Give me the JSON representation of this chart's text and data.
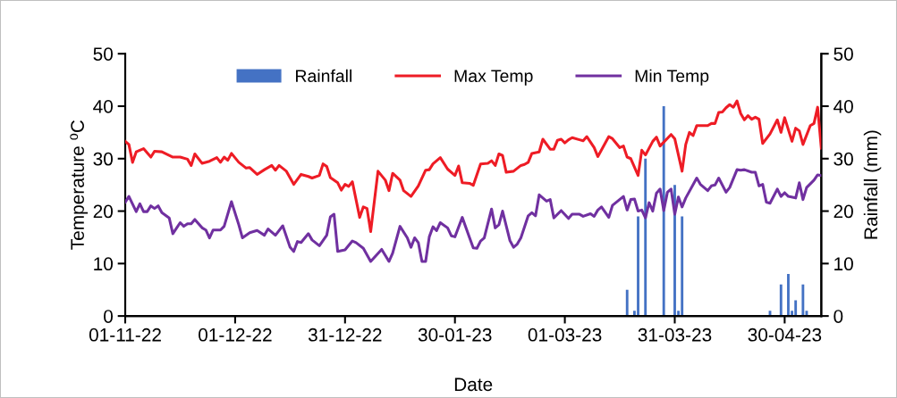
{
  "chart_data": {
    "type": "line",
    "xlabel": "Date",
    "ylabel": "Temperature ⁰C",
    "y2label": "Rainfall (mm)",
    "xlim": [
      "2022-11-01",
      "2023-05-10"
    ],
    "xticks": [
      {
        "value": "2022-11-01",
        "label": "01-11-22"
      },
      {
        "value": "2022-12-01",
        "label": "01-12-22"
      },
      {
        "value": "2022-12-31",
        "label": "31-12-22"
      },
      {
        "value": "2023-01-30",
        "label": "30-01-23"
      },
      {
        "value": "2023-03-01",
        "label": "01-03-23"
      },
      {
        "value": "2023-03-31",
        "label": "31-03-23"
      },
      {
        "value": "2023-04-30",
        "label": "30-04-23"
      }
    ],
    "ylim": [
      0,
      50
    ],
    "yticks": [
      0,
      10,
      20,
      30,
      40,
      50
    ],
    "y2lim": [
      0,
      50
    ],
    "y2ticks": [
      0,
      10,
      20,
      30,
      40,
      50
    ],
    "legend": "top",
    "grid": false,
    "marker": "none",
    "line_style": "solid",
    "series": [
      {
        "name": "Rainfall",
        "type": "bar",
        "axis": "y2",
        "color": "#4472c4",
        "x": [
          "2023-03-18",
          "2023-03-20",
          "2023-03-21",
          "2023-03-23",
          "2023-03-28",
          "2023-03-31",
          "2023-04-01",
          "2023-04-02",
          "2023-04-26",
          "2023-04-29",
          "2023-05-01",
          "2023-05-02",
          "2023-05-03",
          "2023-05-05",
          "2023-05-06"
        ],
        "values": [
          5,
          1,
          19,
          30,
          40,
          25,
          1,
          19,
          1,
          6,
          8,
          1,
          3,
          6,
          1
        ]
      },
      {
        "name": "Max Temp",
        "color": "#ee1c25",
        "x": [
          "2022-11-01",
          "2022-11-02",
          "2022-11-03",
          "2022-11-04",
          "2022-11-06",
          "2022-11-08",
          "2022-11-09",
          "2022-11-11",
          "2022-11-14",
          "2022-11-16",
          "2022-11-18",
          "2022-11-19",
          "2022-11-20",
          "2022-11-22",
          "2022-11-24",
          "2022-11-26",
          "2022-11-27",
          "2022-11-28",
          "2022-11-29",
          "2022-11-30",
          "2022-12-02",
          "2022-12-04",
          "2022-12-05",
          "2022-12-07",
          "2022-12-09",
          "2022-12-11",
          "2022-12-12",
          "2022-12-13",
          "2022-12-15",
          "2022-12-17",
          "2022-12-19",
          "2022-12-21",
          "2022-12-22",
          "2022-12-24",
          "2022-12-25",
          "2022-12-26",
          "2022-12-27",
          "2022-12-29",
          "2022-12-30",
          "2022-12-31",
          "2023-01-01",
          "2023-01-02",
          "2023-01-04",
          "2023-01-05",
          "2023-01-06",
          "2023-01-07",
          "2023-01-09",
          "2023-01-11",
          "2023-01-12",
          "2023-01-13",
          "2023-01-15",
          "2023-01-16",
          "2023-01-18",
          "2023-01-20",
          "2023-01-22",
          "2023-01-23",
          "2023-01-24",
          "2023-01-26",
          "2023-01-28",
          "2023-01-30",
          "2023-01-31",
          "2023-02-01",
          "2023-02-03",
          "2023-02-04",
          "2023-02-06",
          "2023-02-08",
          "2023-02-09",
          "2023-02-10",
          "2023-02-11",
          "2023-02-12",
          "2023-02-13",
          "2023-02-15",
          "2023-02-17",
          "2023-02-18",
          "2023-02-19",
          "2023-02-20",
          "2023-02-22",
          "2023-02-23",
          "2023-02-25",
          "2023-02-26",
          "2023-02-27",
          "2023-02-28",
          "2023-03-01",
          "2023-03-02",
          "2023-03-03",
          "2023-03-05",
          "2023-03-06",
          "2023-03-07",
          "2023-03-09",
          "2023-03-10",
          "2023-03-13",
          "2023-03-14",
          "2023-03-16",
          "2023-03-17",
          "2023-03-18",
          "2023-03-19",
          "2023-03-21",
          "2023-03-22",
          "2023-03-23",
          "2023-03-25",
          "2023-03-26",
          "2023-03-27",
          "2023-03-30",
          "2023-03-31",
          "2023-04-02",
          "2023-04-03",
          "2023-04-04",
          "2023-04-05",
          "2023-04-06",
          "2023-04-09",
          "2023-04-10",
          "2023-04-11",
          "2023-04-12",
          "2023-04-13",
          "2023-04-14",
          "2023-04-15",
          "2023-04-16",
          "2023-04-17",
          "2023-04-18",
          "2023-04-19",
          "2023-04-20",
          "2023-04-21",
          "2023-04-22",
          "2023-04-23",
          "2023-04-24",
          "2023-04-26",
          "2023-04-28",
          "2023-04-29",
          "2023-04-30",
          "2023-05-02",
          "2023-05-03",
          "2023-05-04",
          "2023-05-05",
          "2023-05-07",
          "2023-05-08",
          "2023-05-09",
          "2023-05-10"
        ],
        "values": [
          33.3,
          32.7,
          29.3,
          31.3,
          31.9,
          30.3,
          31.4,
          31.3,
          30.3,
          30.3,
          29.9,
          28.7,
          30.9,
          29.1,
          29.5,
          30.2,
          29.3,
          30.3,
          29.7,
          31.0,
          29.3,
          28.2,
          28.3,
          27.0,
          27.9,
          28.7,
          27.8,
          28.7,
          27.6,
          25.1,
          27.0,
          26.6,
          26.3,
          26.8,
          29.0,
          28.5,
          26.4,
          25.4,
          24.0,
          25.1,
          24.7,
          25.6,
          18.8,
          20.8,
          20.5,
          16.1,
          27.6,
          25.9,
          23.9,
          27.2,
          25.9,
          23.9,
          22.8,
          24.8,
          27.8,
          27.9,
          29.0,
          30.2,
          28.0,
          26.8,
          28.6,
          25.4,
          25.3,
          24.9,
          29.0,
          29.1,
          29.6,
          28.7,
          30.9,
          30.6,
          27.4,
          27.6,
          28.7,
          28.9,
          29.3,
          31.0,
          31.3,
          33.7,
          31.8,
          31.8,
          33.5,
          33.7,
          33.0,
          33.6,
          34.0,
          33.6,
          33.4,
          34.2,
          32.1,
          30.4,
          34.2,
          33.8,
          32.1,
          32.4,
          30.3,
          30.0,
          26.8,
          31.6,
          30.7,
          33.3,
          34.1,
          32.4,
          34.6,
          33.8,
          27.6,
          32.7,
          35.0,
          34.4,
          36.3,
          36.3,
          36.7,
          36.7,
          38.8,
          38.9,
          39.7,
          40.3,
          39.8,
          41.0,
          38.6,
          37.4,
          38.2,
          37.5,
          37.9,
          37.5,
          32.9,
          34.7,
          37.4,
          35.0,
          37.8,
          33.3,
          35.8,
          35.3,
          32.7,
          36.3,
          36.7,
          39.8,
          32.0
        ]
      },
      {
        "name": "Min Temp",
        "color": "#7030a0",
        "x": [
          "2022-11-01",
          "2022-11-02",
          "2022-11-04",
          "2022-11-05",
          "2022-11-06",
          "2022-11-07",
          "2022-11-08",
          "2022-11-09",
          "2022-11-10",
          "2022-11-11",
          "2022-11-13",
          "2022-11-14",
          "2022-11-16",
          "2022-11-17",
          "2022-11-18",
          "2022-11-19",
          "2022-11-20",
          "2022-11-22",
          "2022-11-23",
          "2022-11-24",
          "2022-11-25",
          "2022-11-27",
          "2022-11-28",
          "2022-11-30",
          "2022-12-02",
          "2022-12-03",
          "2022-12-05",
          "2022-12-07",
          "2022-12-09",
          "2022-12-10",
          "2022-12-12",
          "2022-12-14",
          "2022-12-16",
          "2022-12-17",
          "2022-12-18",
          "2022-12-19",
          "2022-12-21",
          "2022-12-22",
          "2022-12-24",
          "2022-12-26",
          "2022-12-27",
          "2022-12-28",
          "2022-12-29",
          "2022-12-31",
          "2023-01-02",
          "2023-01-03",
          "2023-01-05",
          "2023-01-07",
          "2023-01-10",
          "2023-01-12",
          "2023-01-13",
          "2023-01-15",
          "2023-01-17",
          "2023-01-18",
          "2023-01-19",
          "2023-01-20",
          "2023-01-21",
          "2023-01-22",
          "2023-01-23",
          "2023-01-24",
          "2023-01-25",
          "2023-01-26",
          "2023-01-28",
          "2023-01-29",
          "2023-01-30",
          "2023-02-01",
          "2023-02-03",
          "2023-02-04",
          "2023-02-05",
          "2023-02-06",
          "2023-02-07",
          "2023-02-09",
          "2023-02-10",
          "2023-02-11",
          "2023-02-12",
          "2023-02-14",
          "2023-02-15",
          "2023-02-16",
          "2023-02-17",
          "2023-02-19",
          "2023-02-20",
          "2023-02-21",
          "2023-02-22",
          "2023-02-24",
          "2023-02-25",
          "2023-02-26",
          "2023-02-28",
          "2023-03-02",
          "2023-03-03",
          "2023-03-05",
          "2023-03-06",
          "2023-03-08",
          "2023-03-09",
          "2023-03-10",
          "2023-03-11",
          "2023-03-13",
          "2023-03-14",
          "2023-03-17",
          "2023-03-18",
          "2023-03-19",
          "2023-03-20",
          "2023-03-21",
          "2023-03-22",
          "2023-03-23",
          "2023-03-24",
          "2023-03-25",
          "2023-03-26",
          "2023-03-27",
          "2023-03-28",
          "2023-03-29",
          "2023-03-30",
          "2023-03-31",
          "2023-04-01",
          "2023-04-02",
          "2023-04-03",
          "2023-04-06",
          "2023-04-07",
          "2023-04-09",
          "2023-04-10",
          "2023-04-11",
          "2023-04-12",
          "2023-04-14",
          "2023-04-15",
          "2023-04-17",
          "2023-04-18",
          "2023-04-19",
          "2023-04-21",
          "2023-04-22",
          "2023-04-23",
          "2023-04-24",
          "2023-04-25",
          "2023-04-26",
          "2023-04-28",
          "2023-04-29",
          "2023-04-30",
          "2023-05-01",
          "2023-05-03",
          "2023-05-04",
          "2023-05-05",
          "2023-05-06",
          "2023-05-08",
          "2023-05-09",
          "2023-05-10"
        ],
        "values": [
          21.7,
          22.8,
          19.9,
          21.4,
          19.9,
          19.9,
          21.0,
          20.5,
          21.0,
          19.7,
          18.7,
          15.7,
          17.8,
          17.1,
          17.6,
          17.6,
          18.4,
          16.8,
          16.4,
          14.9,
          16.4,
          16.4,
          17.1,
          21.8,
          17.4,
          14.9,
          15.9,
          16.3,
          15.4,
          16.6,
          15.4,
          17.2,
          13.1,
          12.3,
          14.2,
          14.0,
          15.7,
          14.5,
          13.4,
          15.4,
          18.9,
          19.4,
          12.3,
          12.6,
          14.3,
          14.0,
          12.9,
          10.4,
          12.7,
          10.4,
          12.0,
          17.1,
          14.9,
          13.1,
          14.9,
          14.0,
          10.4,
          10.4,
          15.1,
          17.0,
          16.3,
          17.8,
          16.8,
          15.3,
          15.1,
          18.8,
          14.9,
          13.0,
          12.9,
          14.3,
          14.9,
          20.4,
          16.8,
          17.4,
          20.0,
          14.4,
          13.1,
          13.7,
          14.9,
          19.1,
          19.7,
          19.1,
          23.1,
          21.9,
          22.2,
          18.7,
          20.1,
          18.6,
          19.4,
          19.4,
          19.0,
          19.5,
          19.0,
          20.2,
          20.8,
          18.8,
          21.1,
          22.8,
          20.2,
          22.2,
          22.3,
          20.0,
          20.2,
          18.7,
          21.6,
          20.0,
          23.4,
          24.2,
          20.1,
          23.6,
          24.2,
          19.4,
          22.7,
          20.8,
          22.5,
          26.3,
          25.1,
          23.9,
          24.8,
          25.0,
          26.3,
          23.6,
          24.5,
          27.9,
          27.8,
          27.9,
          27.4,
          27.4,
          24.8,
          25.1,
          21.7,
          21.5,
          24.2,
          22.8,
          23.5,
          22.8,
          22.5,
          25.4,
          22.2,
          24.5,
          25.9,
          26.9,
          26.8
        ]
      }
    ]
  }
}
